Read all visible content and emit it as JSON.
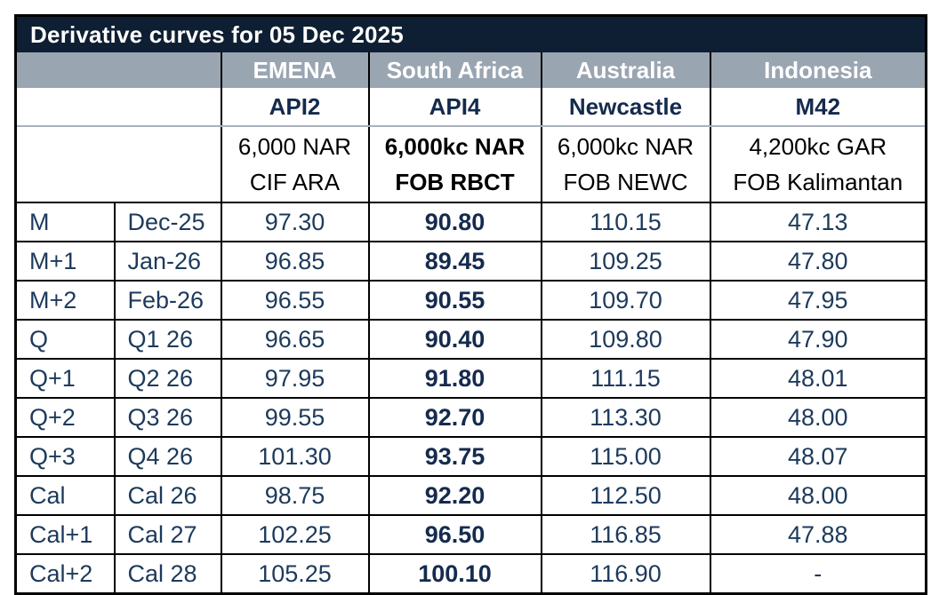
{
  "title": "Derivative curves for 05 Dec 2025",
  "columns": [
    {
      "region": "EMENA",
      "index": "API2",
      "spec_line1": "6,000 NAR",
      "spec_line2": "CIF ARA",
      "emphasized": false
    },
    {
      "region": "South Africa",
      "index": "API4",
      "spec_line1": "6,000kc NAR",
      "spec_line2": "FOB RBCT",
      "emphasized": true
    },
    {
      "region": "Australia",
      "index": "Newcastle",
      "spec_line1": "6,000kc NAR",
      "spec_line2": "FOB NEWC",
      "emphasized": false
    },
    {
      "region": "Indonesia",
      "index": "M42",
      "spec_line1": "4,200kc GAR",
      "spec_line2": "FOB Kalimantan",
      "emphasized": false
    }
  ],
  "rows": [
    {
      "tenor": "M",
      "period": "Dec-25",
      "values": [
        "97.30",
        "90.80",
        "110.15",
        "47.13"
      ]
    },
    {
      "tenor": "M+1",
      "period": "Jan-26",
      "values": [
        "96.85",
        "89.45",
        "109.25",
        "47.80"
      ]
    },
    {
      "tenor": "M+2",
      "period": "Feb-26",
      "values": [
        "96.55",
        "90.55",
        "109.70",
        "47.95"
      ]
    },
    {
      "tenor": "Q",
      "period": "Q1 26",
      "values": [
        "96.65",
        "90.40",
        "109.80",
        "47.90"
      ]
    },
    {
      "tenor": "Q+1",
      "period": "Q2 26",
      "values": [
        "97.95",
        "91.80",
        "111.15",
        "48.01"
      ]
    },
    {
      "tenor": "Q+2",
      "period": "Q3 26",
      "values": [
        "99.55",
        "92.70",
        "113.30",
        "48.00"
      ]
    },
    {
      "tenor": "Q+3",
      "period": "Q4 26",
      "values": [
        "101.30",
        "93.75",
        "115.00",
        "48.07"
      ]
    },
    {
      "tenor": "Cal",
      "period": "Cal 26",
      "values": [
        "98.75",
        "92.20",
        "112.50",
        "48.00"
      ]
    },
    {
      "tenor": "Cal+1",
      "period": "Cal 27",
      "values": [
        "102.25",
        "96.50",
        "116.85",
        "47.88"
      ]
    },
    {
      "tenor": "Cal+2",
      "period": "Cal 28",
      "values": [
        "105.25",
        "100.10",
        "116.90",
        "-"
      ]
    }
  ],
  "colors": {
    "title_background": "#0f1f33",
    "region_header_background": "#9aa5b2",
    "header_text": "#ffffff",
    "index_text": "#152a4d",
    "value_text": "#1d3a5c",
    "spec_text": "#000000",
    "grid_line": "#000000",
    "light_separator": "#a9b2bc"
  }
}
